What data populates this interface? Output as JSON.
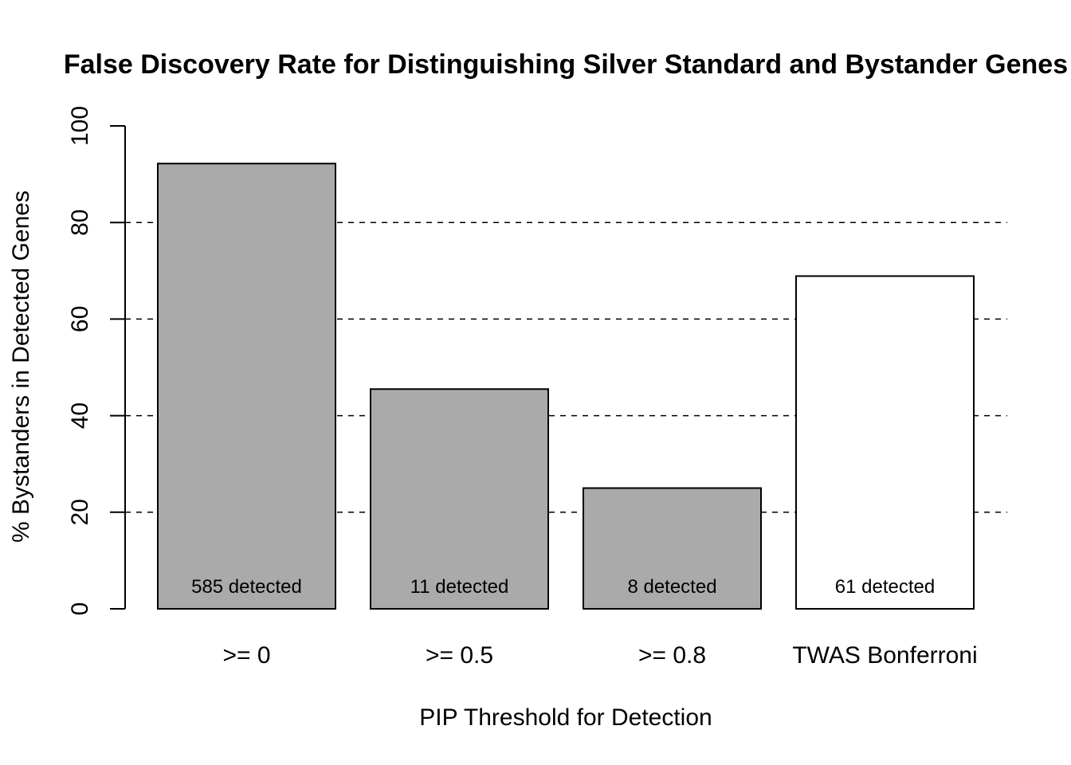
{
  "chart_data": {
    "type": "bar",
    "title": "False Discovery Rate for Distinguishing Silver Standard and Bystander Genes",
    "xlabel": "PIP Threshold for Detection",
    "ylabel": "% Bystanders in Detected Genes",
    "ylim": [
      0,
      100
    ],
    "yticks": [
      "0",
      "20",
      "40",
      "60",
      "80",
      "100"
    ],
    "gridlines": [
      20,
      40,
      60,
      80
    ],
    "grid_style": "dashed-horizontal",
    "categories": [
      ">= 0",
      ">= 0.5",
      ">= 0.8",
      "TWAS Bonferroni"
    ],
    "values": [
      92.2,
      45.5,
      25.0,
      68.9
    ],
    "bar_labels": [
      "585 detected",
      "11 detected",
      "8 detected",
      "61 detected"
    ],
    "colors": [
      "#aaaaaa",
      "#aaaaaa",
      "#aaaaaa",
      "#ffffff"
    ],
    "edge_color": "#000000"
  }
}
